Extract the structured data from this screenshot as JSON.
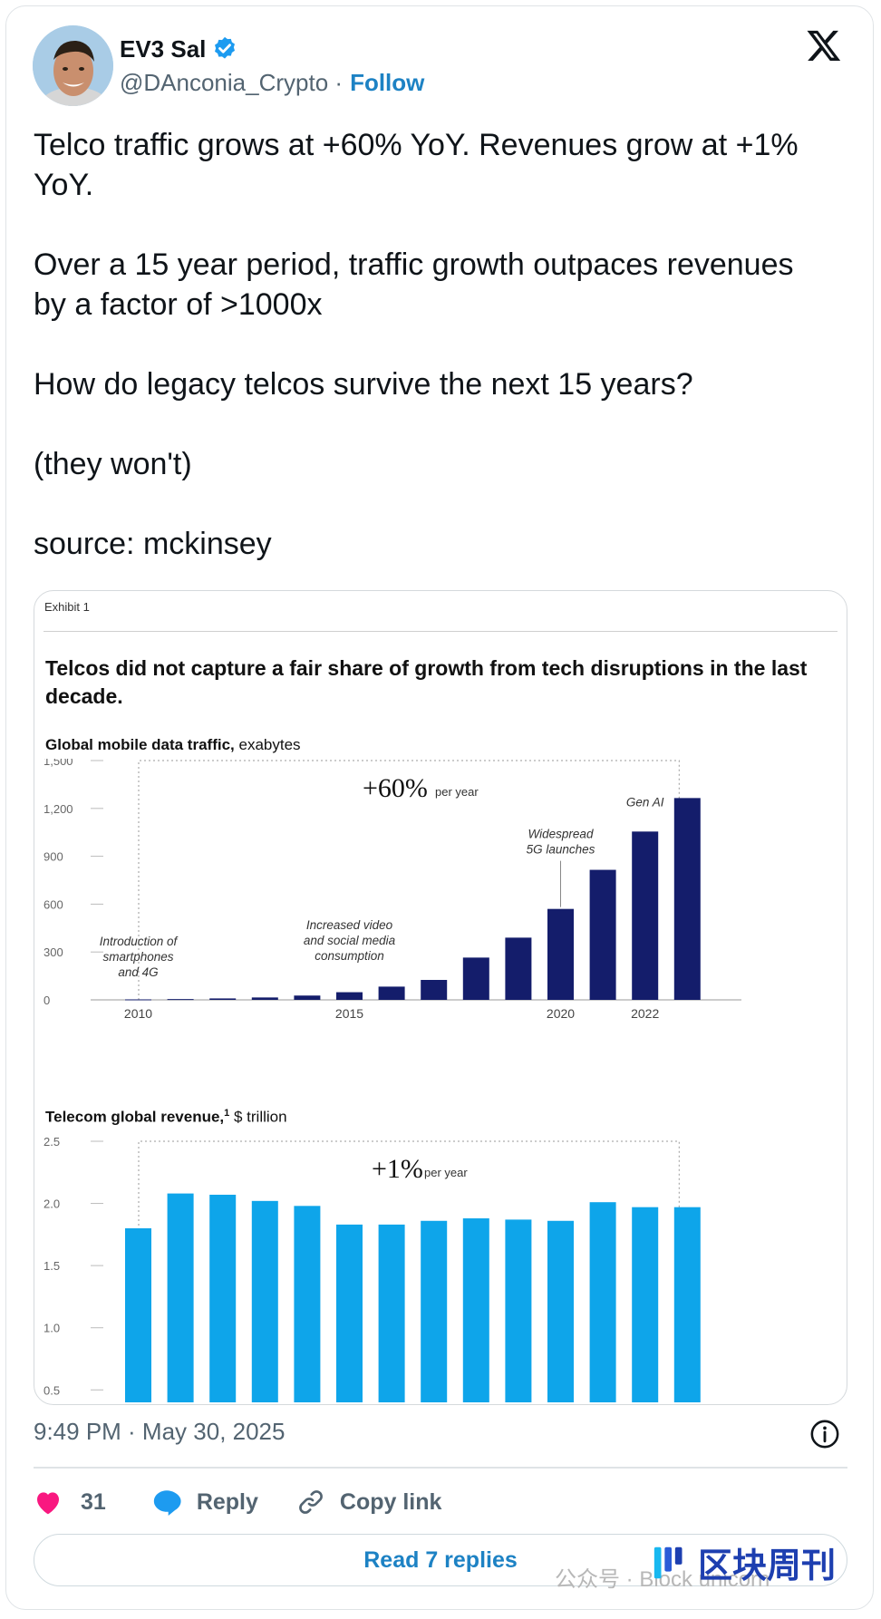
{
  "author": {
    "name": "EV3 Sal",
    "handle": "@DAnconia_Crypto",
    "follow_label": "Follow",
    "verified": true
  },
  "tweet": {
    "line1": "Telco traffic grows at +60% YoY. Revenues grow at +1% YoY.",
    "line2": "Over a 15 year period, traffic growth outpaces revenues by a factor of >1000x",
    "line3": "How do legacy telcos survive the next 15 years?",
    "line4": "(they won't)",
    "line5": "source: mckinsey"
  },
  "media": {
    "exhibit": "Exhibit 1",
    "title": "Telcos did not capture a fair share of growth from tech disruptions in the last decade.",
    "chart1_label_bold": "Global mobile data traffic,",
    "chart1_label_unit": " exabytes",
    "chart2_label_bold": "Telecom global revenue,",
    "chart2_label_sup": "1",
    "chart2_label_unit": " $ trillion"
  },
  "chart_data": [
    {
      "type": "bar",
      "ylabel": "Global mobile data traffic, exabytes",
      "categories": [
        "2010",
        "2011",
        "2012",
        "2013",
        "2014",
        "2015",
        "2016",
        "2017",
        "2018",
        "2019",
        "2020",
        "2021",
        "2022",
        "2023"
      ],
      "tick_labels": {
        "0": "2010",
        "5": "2015",
        "10": "2020",
        "12": "2022"
      },
      "values": [
        3,
        5,
        9,
        15,
        27,
        48,
        83,
        125,
        265,
        390,
        570,
        815,
        1055,
        1265
      ],
      "ylim": [
        0,
        1500
      ],
      "yticks": [
        0,
        300,
        600,
        900,
        1200,
        1500
      ],
      "ytick_labels": [
        "0",
        "300",
        "600",
        "900",
        "1,200",
        "1,500"
      ],
      "color": "#141d6b",
      "growth_big": "+60%",
      "growth_small": "per year",
      "annotations": [
        {
          "index": 0,
          "lines": [
            "Introduction of",
            "smartphones",
            "and 4G"
          ]
        },
        {
          "index": 5,
          "lines": [
            "Increased video",
            "and social media",
            "consumption"
          ]
        },
        {
          "index": 10,
          "lines": [
            "Widespread",
            "5G launches"
          ]
        },
        {
          "index": 12,
          "lines": [
            "Gen AI"
          ]
        }
      ]
    },
    {
      "type": "bar",
      "ylabel": "Telecom global revenue, $ trillion",
      "categories": [
        "2010",
        "2011",
        "2012",
        "2013",
        "2014",
        "2015",
        "2016",
        "2017",
        "2018",
        "2019",
        "2020",
        "2021",
        "2022",
        "2023"
      ],
      "values": [
        1.8,
        2.08,
        2.07,
        2.02,
        1.98,
        1.83,
        1.83,
        1.86,
        1.88,
        1.87,
        1.86,
        2.01,
        1.97,
        1.97
      ],
      "ylim": [
        0.4,
        2.5
      ],
      "yticks": [
        0.5,
        1.0,
        1.5,
        2.0,
        2.5
      ],
      "ytick_labels": [
        "0.5",
        "1.0",
        "1.5",
        "2.0",
        "2.5"
      ],
      "color": "#0ea5ea",
      "growth_big": "+1%",
      "growth_small": "per year"
    }
  ],
  "meta": {
    "timestamp": "9:49 PM · May 30, 2025"
  },
  "actions": {
    "like_count": "31",
    "reply_label": "Reply",
    "copy_label": "Copy link",
    "read_replies": "Read 7 replies"
  },
  "watermark": {
    "left_text": "公众号 · Block unicorn",
    "logo_text": "区块周刊"
  },
  "colors": {
    "accent": "#1d82c4",
    "like": "#f91880",
    "reply_icon": "#1d9bf0"
  },
  "icons": {
    "verified": "verified-badge-icon",
    "brand": "x-logo-icon",
    "info": "info-icon",
    "like": "heart-icon",
    "reply": "speech-bubble-icon",
    "copy": "link-icon"
  }
}
